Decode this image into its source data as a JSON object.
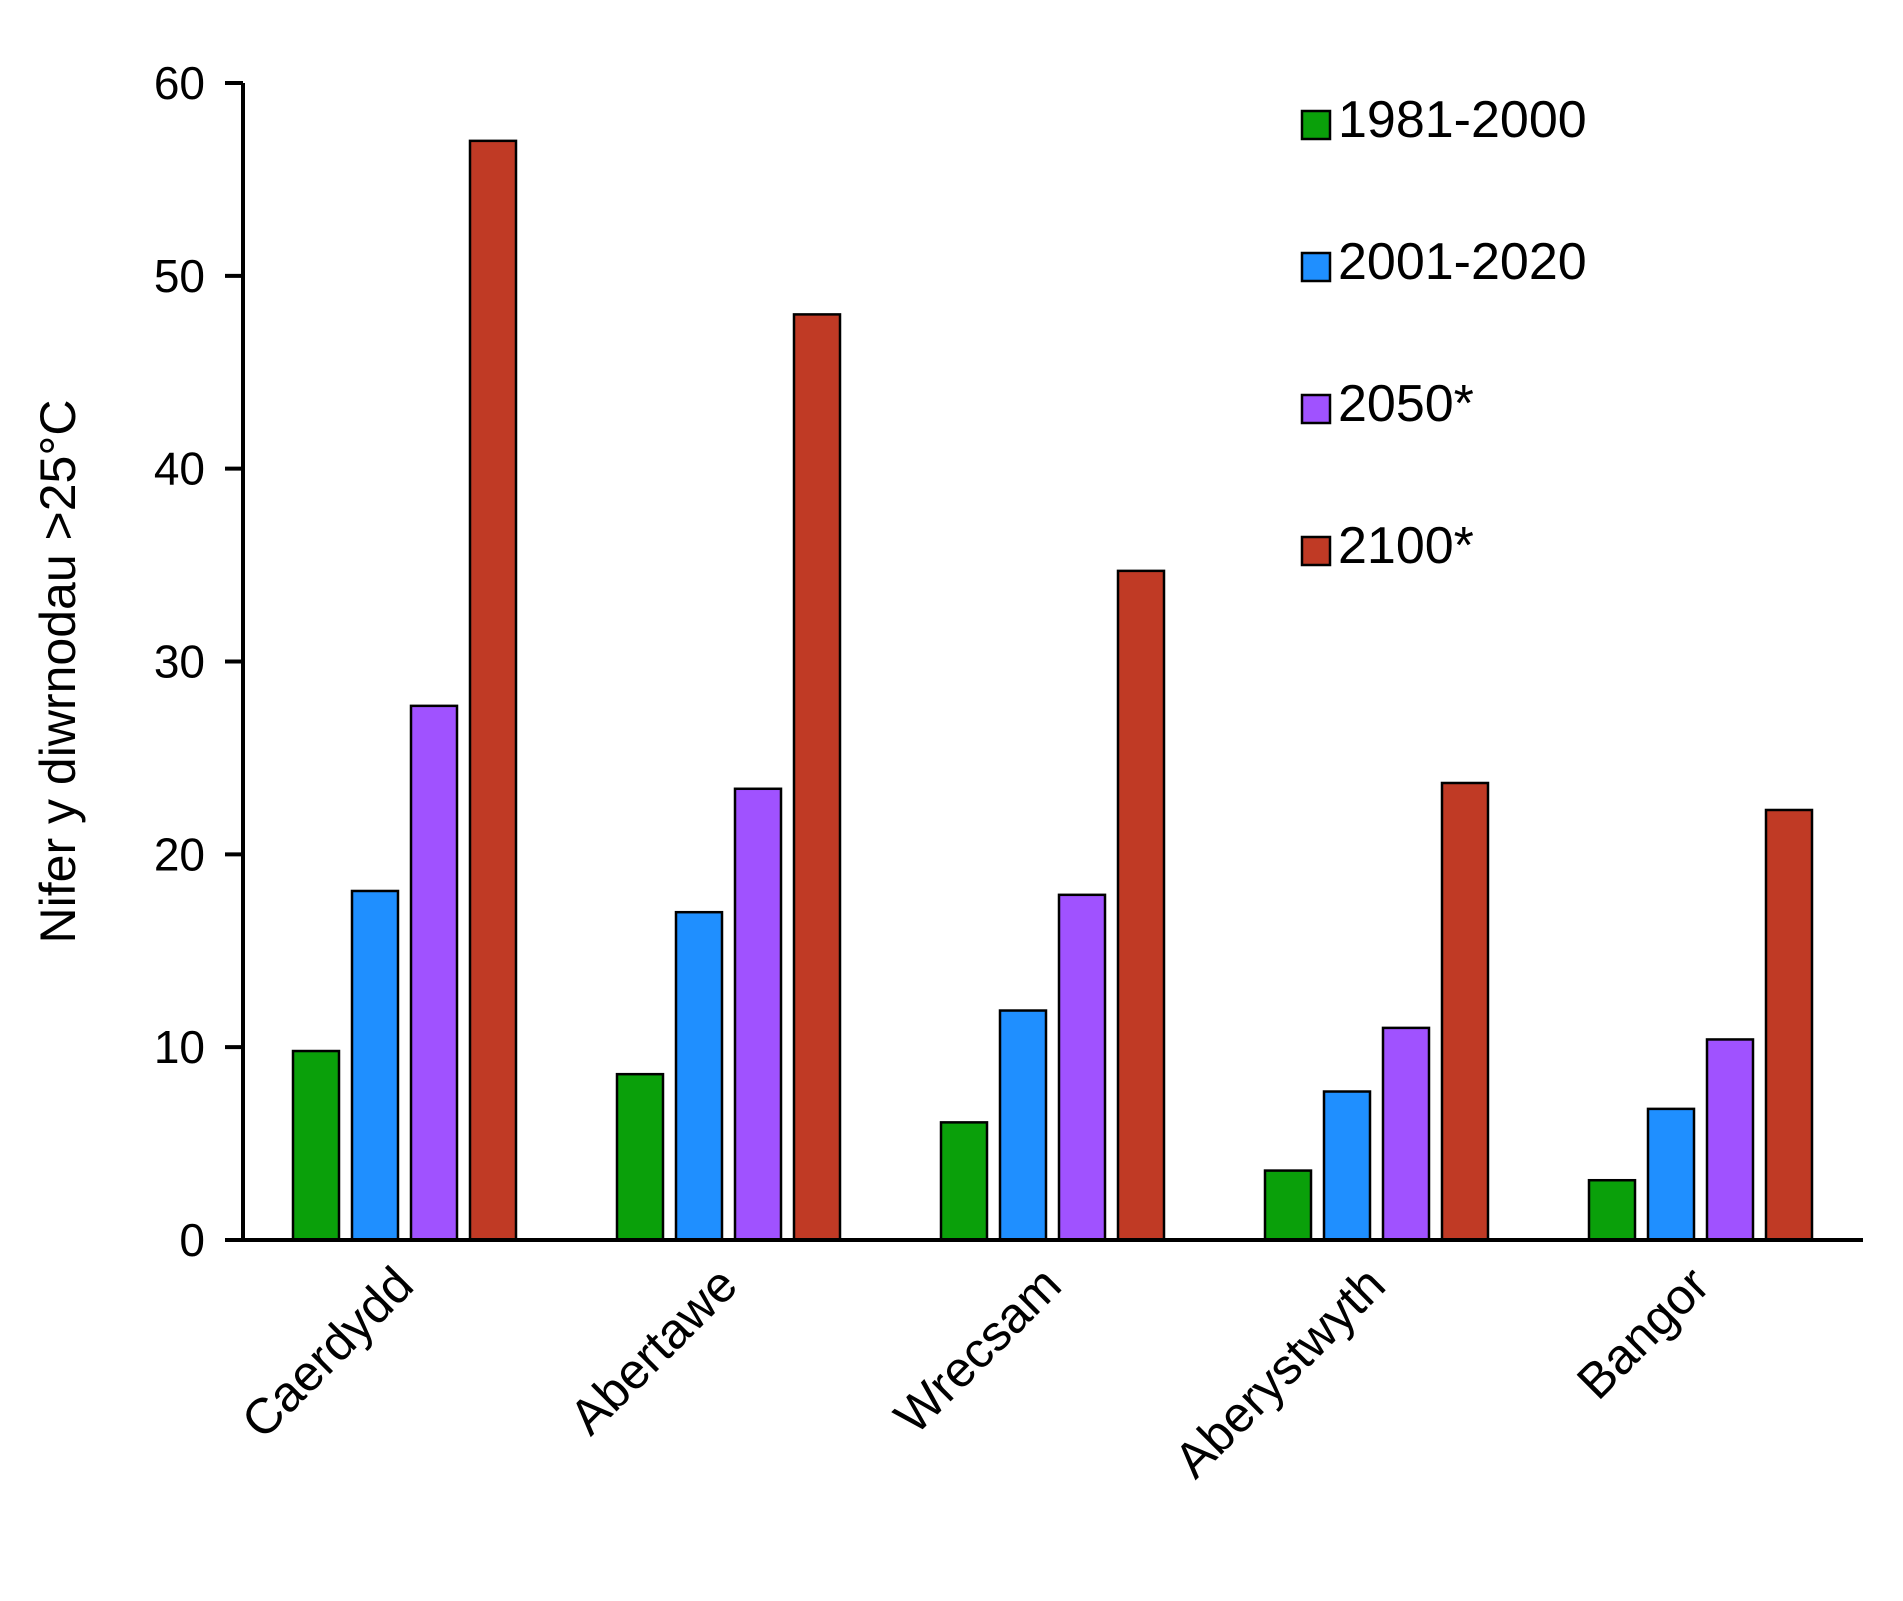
{
  "chart_data": {
    "type": "bar",
    "ylabel": "Nifer y diwrnodau >25°C",
    "xlabel": "",
    "ylim": [
      0,
      60
    ],
    "yticks": [
      0,
      10,
      20,
      30,
      40,
      50,
      60
    ],
    "grid": false,
    "legend_position": "top-right",
    "categories": [
      "Caerdydd",
      "Abertawe",
      "Wrecsam",
      "Aberystwyth",
      "Bangor"
    ],
    "series": [
      {
        "name": "1981-2000",
        "color": "#0aa00a",
        "values": [
          9.8,
          8.6,
          6.1,
          3.6,
          3.1
        ]
      },
      {
        "name": "2001-2020",
        "color": "#1f8fff",
        "values": [
          18.1,
          17.0,
          11.9,
          7.7,
          6.8
        ]
      },
      {
        "name": "2050*",
        "color": "#a052ff",
        "values": [
          27.7,
          23.4,
          17.9,
          11.0,
          10.4
        ]
      },
      {
        "name": "2100*",
        "color": "#c03a25",
        "values": [
          57.0,
          48.0,
          34.7,
          23.7,
          22.3
        ]
      }
    ]
  }
}
